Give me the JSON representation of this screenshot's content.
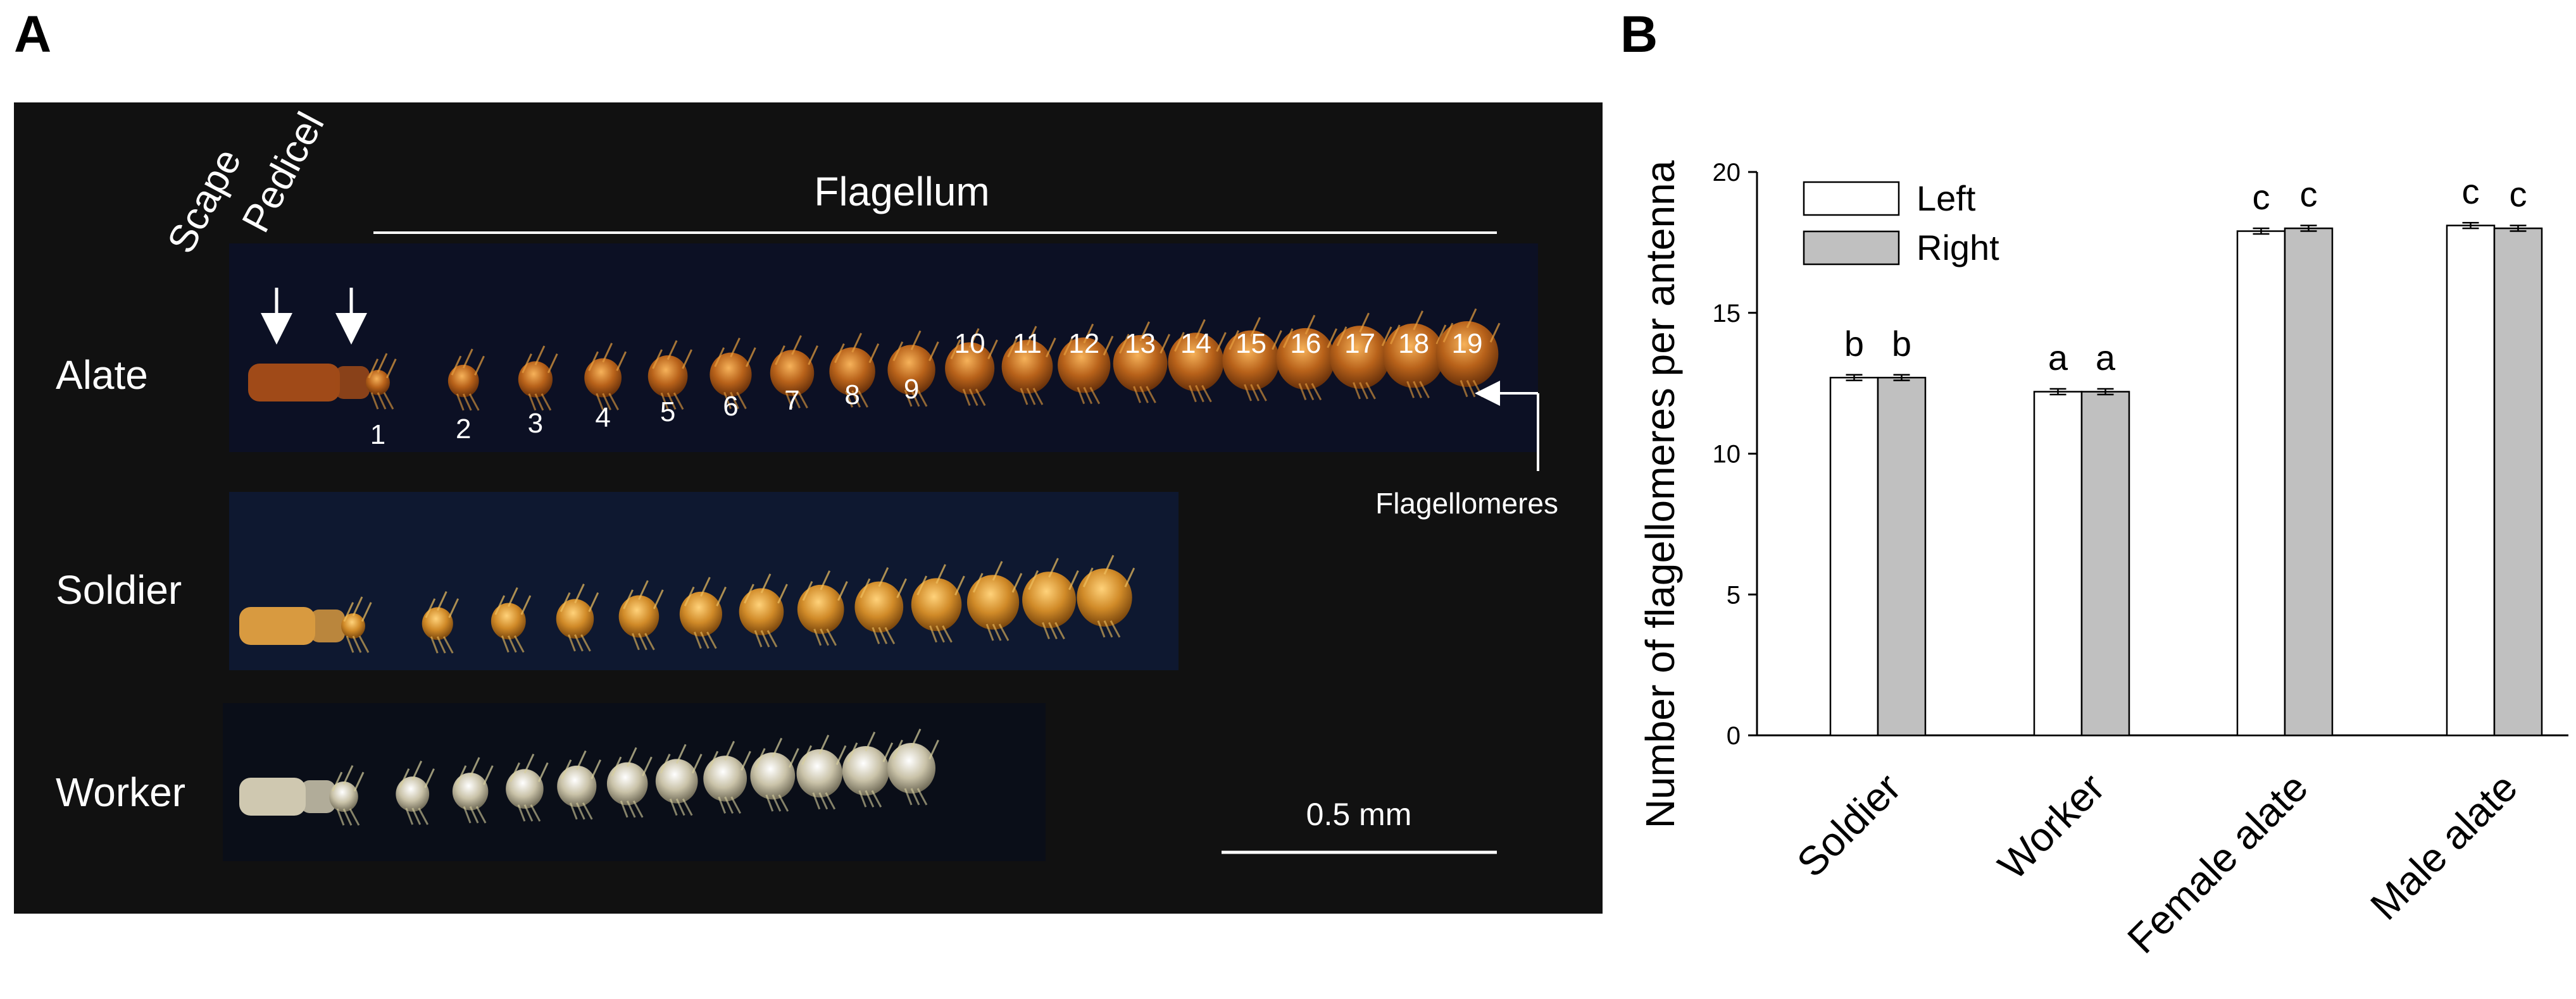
{
  "panel_a": {
    "letter": "A",
    "labels": {
      "scape": "Scape",
      "pedicel": "Pedicel",
      "flagellum": "Flagellum",
      "flagellomeres": "Flagellomeres",
      "scale": "0.5 mm"
    },
    "castes": [
      "Alate",
      "Soldier",
      "Worker"
    ],
    "segment_numbers": [
      "1",
      "2",
      "3",
      "4",
      "5",
      "6",
      "7",
      "8",
      "9",
      "10",
      "11",
      "12",
      "13",
      "14",
      "15",
      "16",
      "17",
      "18",
      "19"
    ],
    "colors": {
      "background": "#111111",
      "alate": "#b8621a",
      "soldier": "#d08a28",
      "worker": "#c9c2a8"
    }
  },
  "panel_b": {
    "letter": "B",
    "chart_data": {
      "type": "bar",
      "categories": [
        "Soldier",
        "Worker",
        "Female alate",
        "Male alate"
      ],
      "series": [
        {
          "name": "Left",
          "values": [
            12.7,
            12.2,
            17.9,
            18.1
          ],
          "errors": [
            0.1,
            0.1,
            0.1,
            0.1
          ],
          "color": "#ffffff"
        },
        {
          "name": "Right",
          "values": [
            12.7,
            12.2,
            18.0,
            18.0
          ],
          "errors": [
            0.1,
            0.1,
            0.1,
            0.1
          ],
          "color": "#c0c0c0"
        }
      ],
      "significance": [
        [
          "b",
          "b"
        ],
        [
          "a",
          "a"
        ],
        [
          "c",
          "c"
        ],
        [
          "c",
          "c"
        ]
      ],
      "ylabel": "Number of flagellomeres per antenna",
      "xlabel": "",
      "ylim": [
        0,
        20
      ],
      "yticks": [
        0,
        5,
        10,
        15,
        20
      ],
      "legend_position": "top-left"
    }
  }
}
